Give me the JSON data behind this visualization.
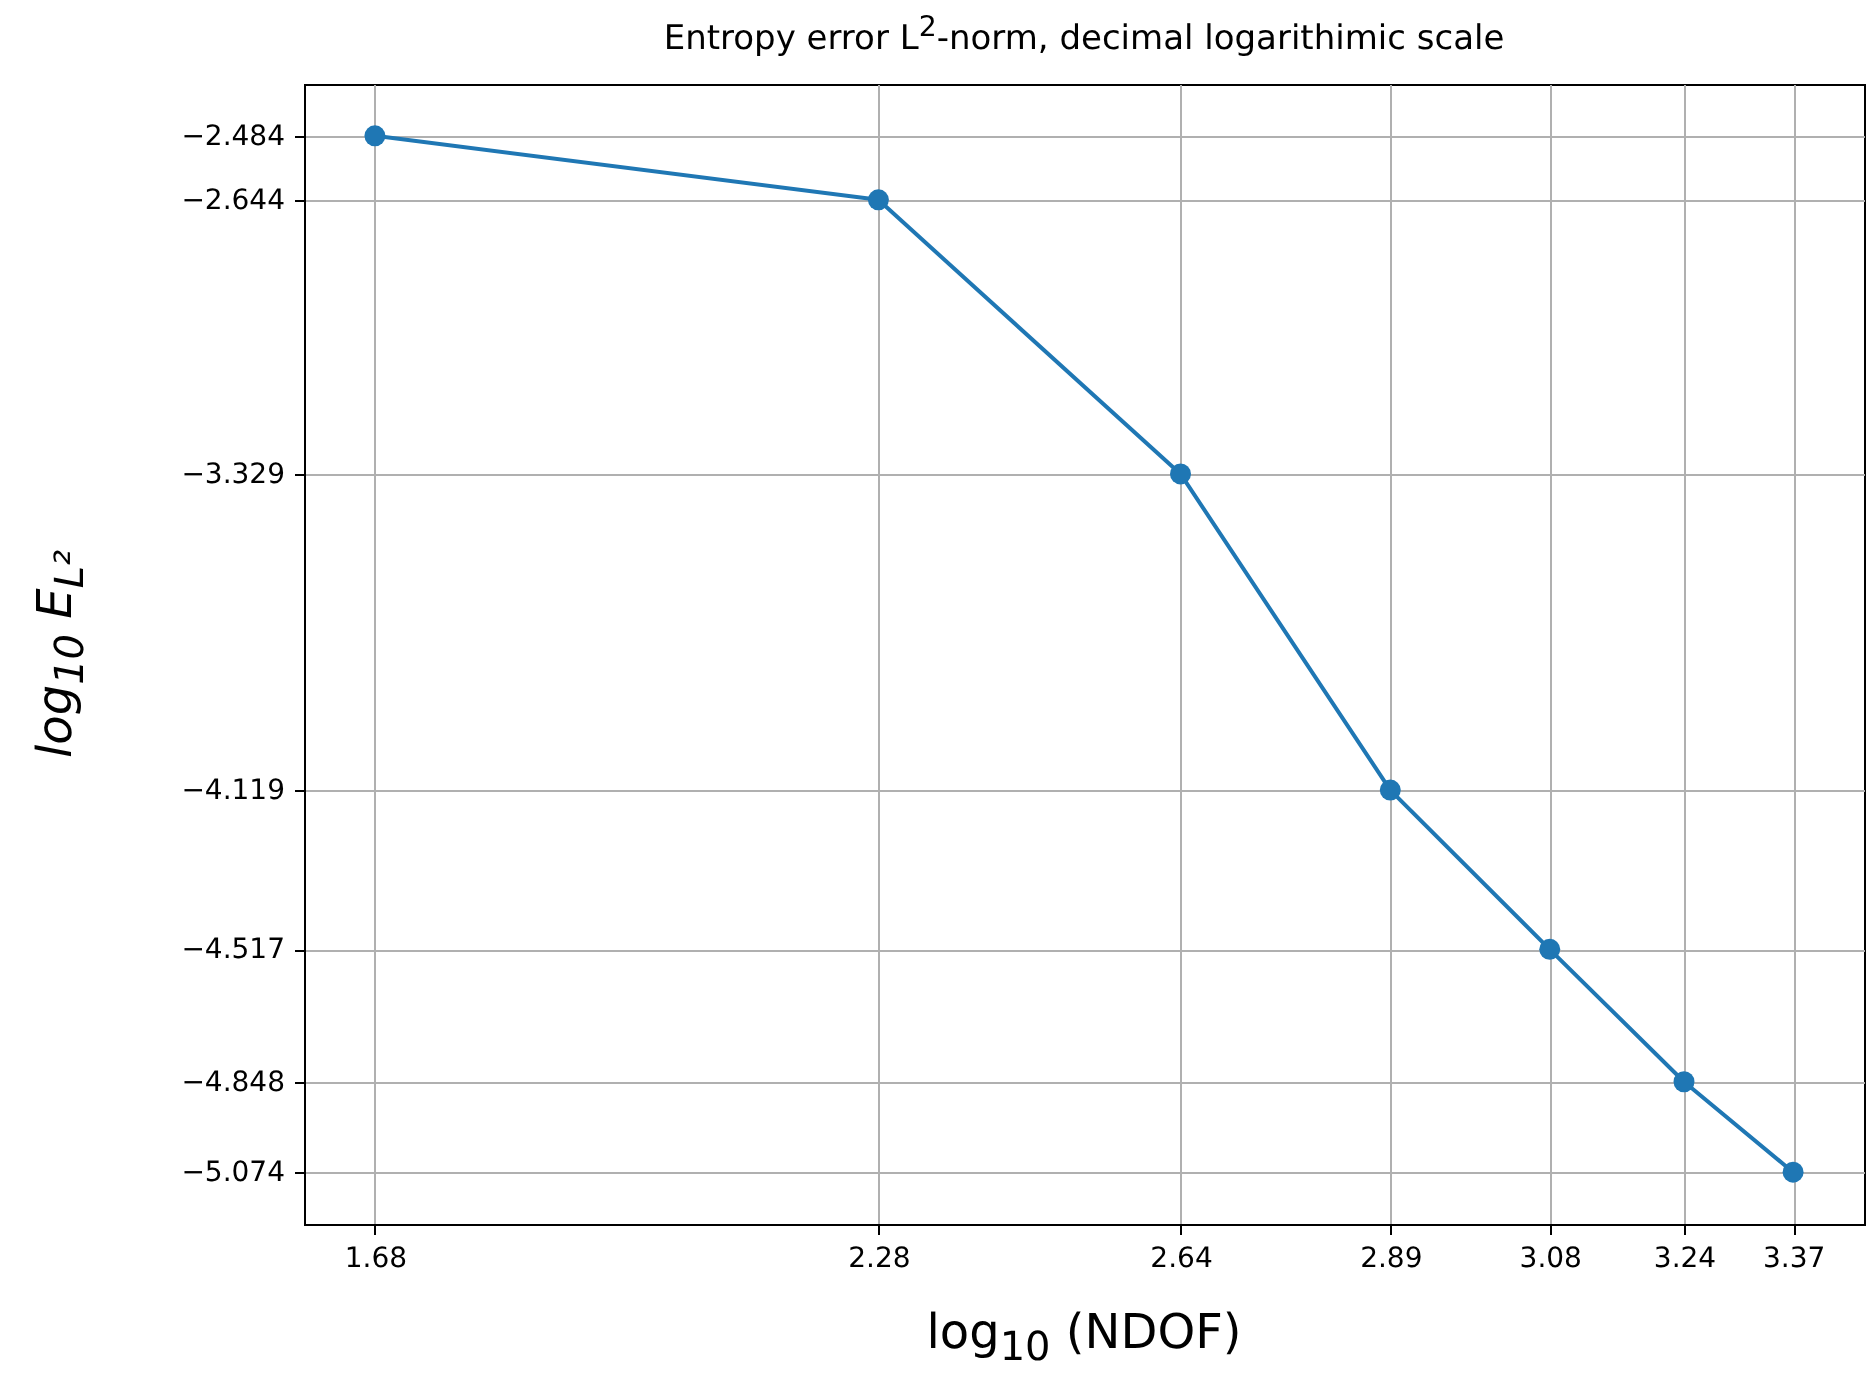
{
  "chart_data": {
    "type": "line",
    "title": "Entropy error L$^{2}$-norm, decimal logarithimic scale",
    "xlabel": "log$_{10}$ (NDOF)",
    "ylabel": "log$_{10}$ E$_{L²}$",
    "x": [
      1.68,
      2.28,
      2.64,
      2.89,
      3.08,
      3.24,
      3.37
    ],
    "series": [
      {
        "color": "#1f77b4",
        "values": [
          -2.484,
          -2.644,
          -3.329,
          -4.119,
          -4.517,
          -4.848,
          -5.074
        ]
      }
    ],
    "xlim": [
      1.5955,
      3.4545
    ],
    "ylim": [
      -5.2035,
      -2.3545
    ],
    "xticks": [
      1.68,
      2.28,
      2.64,
      2.89,
      3.08,
      3.24,
      3.37
    ],
    "yticks": [
      -5.074,
      -4.848,
      -4.517,
      -4.119,
      -3.329,
      -2.644,
      -2.484
    ],
    "grid": true,
    "marker": "circle",
    "line_style": "solid"
  }
}
